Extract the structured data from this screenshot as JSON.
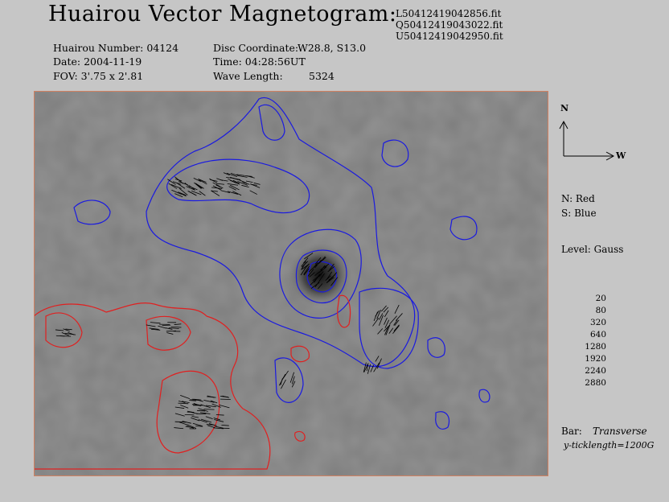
{
  "header": {
    "title": "Huairou Vector Magnetogram:",
    "files": [
      "L50412419042856.fit",
      "Q50412419043022.fit",
      "U50412419042950.fit"
    ],
    "huairou_number": "Huairou Number: 04124",
    "date": "Date: 2004-11-19",
    "fov": "FOV:  3'.75 x 2'.81",
    "disc_coordinate_label": "Disc Coordinate:",
    "disc_coordinate_value": "W28.8, S13.0",
    "time": "Time: 04:28:56UT",
    "wave_length_label": "Wave Length:",
    "wave_length_value": "5324"
  },
  "legend": {
    "north": "N",
    "west": "W",
    "n_polarity": "N: Red",
    "s_polarity": "S: Blue",
    "level_label": "Level: Gauss",
    "levels": [
      "20",
      "80",
      "320",
      "640",
      "1280",
      "1920",
      "2240",
      "2880"
    ],
    "bar_label": "Bar:",
    "bar_type": "Transverse",
    "ticklength": "y-ticklength=1200G"
  },
  "colors": {
    "north_contour": "#e02020",
    "south_contour": "#1a1ae0",
    "background": "#c6c6c6",
    "frame_ticks": "#d08060"
  }
}
